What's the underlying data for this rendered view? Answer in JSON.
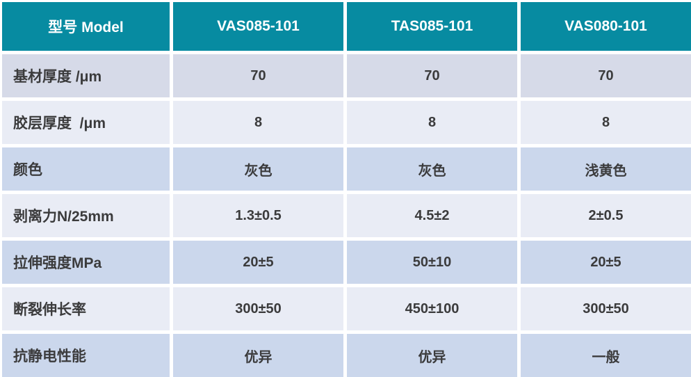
{
  "table": {
    "header": {
      "columns": [
        "型号 Model",
        "VAS085-101",
        "TAS085-101",
        "VAS080-101"
      ]
    },
    "rows": [
      {
        "label": "基材厚度 /μm",
        "values": [
          "70",
          "70",
          "70"
        ]
      },
      {
        "label": "胶层厚度  /μm",
        "values": [
          "8",
          "8",
          "8"
        ]
      },
      {
        "label": "颜色",
        "values": [
          "灰色",
          "灰色",
          "浅黄色"
        ]
      },
      {
        "label": "剥离力N/25mm",
        "values": [
          "1.3±0.5",
          "4.5±2",
          "2±0.5"
        ]
      },
      {
        "label": "拉伸强度MPa",
        "values": [
          "20±5",
          "50±10",
          "20±5"
        ]
      },
      {
        "label": "断裂伸长率",
        "values": [
          "300±50",
          "450±100",
          "300±50"
        ]
      },
      {
        "label": "抗静电性能",
        "values": [
          "优异",
          "优异",
          "一般"
        ]
      }
    ]
  },
  "colors": {
    "header_bg": "#078BA1",
    "header_text": "#FFFFFF",
    "row_tone_a": "#D6DAE8",
    "row_tone_light": "#E9ECF5",
    "row_tone_blue": "#CBD7EC",
    "cell_text": "#3B3B3C",
    "grid_gap": "#FFFFFF"
  },
  "chart_data": {
    "type": "table",
    "title": "",
    "columns": [
      "型号 Model",
      "VAS085-101",
      "TAS085-101",
      "VAS080-101"
    ],
    "rows": [
      [
        "基材厚度 /μm",
        "70",
        "70",
        "70"
      ],
      [
        "胶层厚度 /μm",
        "8",
        "8",
        "8"
      ],
      [
        "颜色",
        "灰色",
        "灰色",
        "浅黄色"
      ],
      [
        "剥离力N/25mm",
        "1.3±0.5",
        "4.5±2",
        "2±0.5"
      ],
      [
        "拉伸强度MPa",
        "20±5",
        "50±10",
        "20±5"
      ],
      [
        "断裂伸长率",
        "300±50",
        "450±100",
        "300±50"
      ],
      [
        "抗静电性能",
        "优异",
        "优异",
        "一般"
      ]
    ]
  }
}
